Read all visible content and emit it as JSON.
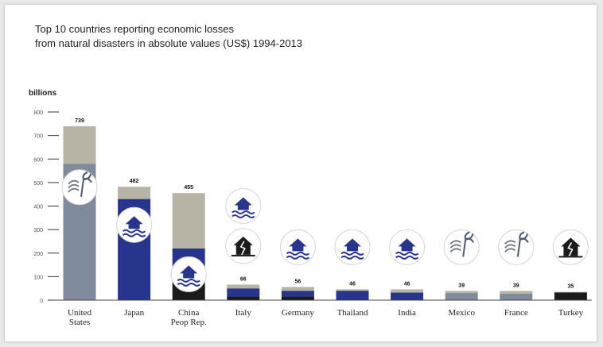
{
  "chart_data": {
    "type": "bar",
    "title_lines": [
      "Top 10 countries reporting economic losses",
      "from natural disasters in absolute values (US$) 1994-2013"
    ],
    "ylabel": "billions",
    "ylim": [
      0,
      800
    ],
    "yticks": [
      0,
      100,
      200,
      300,
      400,
      500,
      600,
      700,
      800
    ],
    "grid": false,
    "categories": [
      [
        "United",
        "States"
      ],
      [
        "Japan"
      ],
      [
        "China",
        "Peop Rep."
      ],
      [
        "Italy"
      ],
      [
        "Germany"
      ],
      [
        "Thailand"
      ],
      [
        "India"
      ],
      [
        "Mexico"
      ],
      [
        "France"
      ],
      [
        "Turkey"
      ]
    ],
    "values": [
      739,
      482,
      455,
      66,
      56,
      46,
      46,
      39,
      39,
      35
    ],
    "value_labels": [
      "739",
      "482",
      "455",
      "66",
      "56",
      "46",
      "46",
      "39",
      "39",
      "35"
    ],
    "colors": {
      "storm": "#7f8a9c",
      "flood": "#27358c",
      "earthquake": "#1b1b1b",
      "other": "#b7b3a5"
    },
    "breakdown": [
      [
        {
          "type": "storm",
          "value": 580
        },
        {
          "type": "other",
          "value": 159
        }
      ],
      [
        {
          "type": "flood",
          "value": 430
        },
        {
          "type": "other",
          "value": 52
        }
      ],
      [
        {
          "type": "earthquake",
          "value": 70
        },
        {
          "type": "flood",
          "value": 150
        },
        {
          "type": "other",
          "value": 235
        }
      ],
      [
        {
          "type": "earthquake",
          "value": 15
        },
        {
          "type": "flood",
          "value": 35
        },
        {
          "type": "other",
          "value": 16
        }
      ],
      [
        {
          "type": "earthquake",
          "value": 15
        },
        {
          "type": "flood",
          "value": 25
        },
        {
          "type": "other",
          "value": 16
        }
      ],
      [
        {
          "type": "flood",
          "value": 40
        },
        {
          "type": "other",
          "value": 6
        }
      ],
      [
        {
          "type": "flood",
          "value": 32
        },
        {
          "type": "other",
          "value": 14
        }
      ],
      [
        {
          "type": "storm",
          "value": 30
        },
        {
          "type": "other",
          "value": 9
        }
      ],
      [
        {
          "type": "storm",
          "value": 28
        },
        {
          "type": "other",
          "value": 11
        }
      ],
      [
        {
          "type": "earthquake",
          "value": 33
        },
        {
          "type": "other",
          "value": 2
        }
      ]
    ],
    "icons": [
      [
        {
          "name": "storm-icon",
          "level": 480
        }
      ],
      [
        {
          "name": "flood-icon",
          "level": 320
        }
      ],
      [
        {
          "name": "flood-icon",
          "level": 110
        }
      ],
      [
        {
          "name": "flood-icon",
          "level": 400
        },
        {
          "name": "earthquake-icon",
          "level": 230
        }
      ],
      [
        {
          "name": "flood-icon",
          "level": 225
        }
      ],
      [
        {
          "name": "flood-icon",
          "level": 225
        }
      ],
      [
        {
          "name": "flood-icon",
          "level": 225
        }
      ],
      [
        {
          "name": "storm-icon",
          "level": 225
        }
      ],
      [
        {
          "name": "storm-icon",
          "level": 225
        }
      ],
      [
        {
          "name": "earthquake-icon",
          "level": 225
        }
      ]
    ]
  }
}
